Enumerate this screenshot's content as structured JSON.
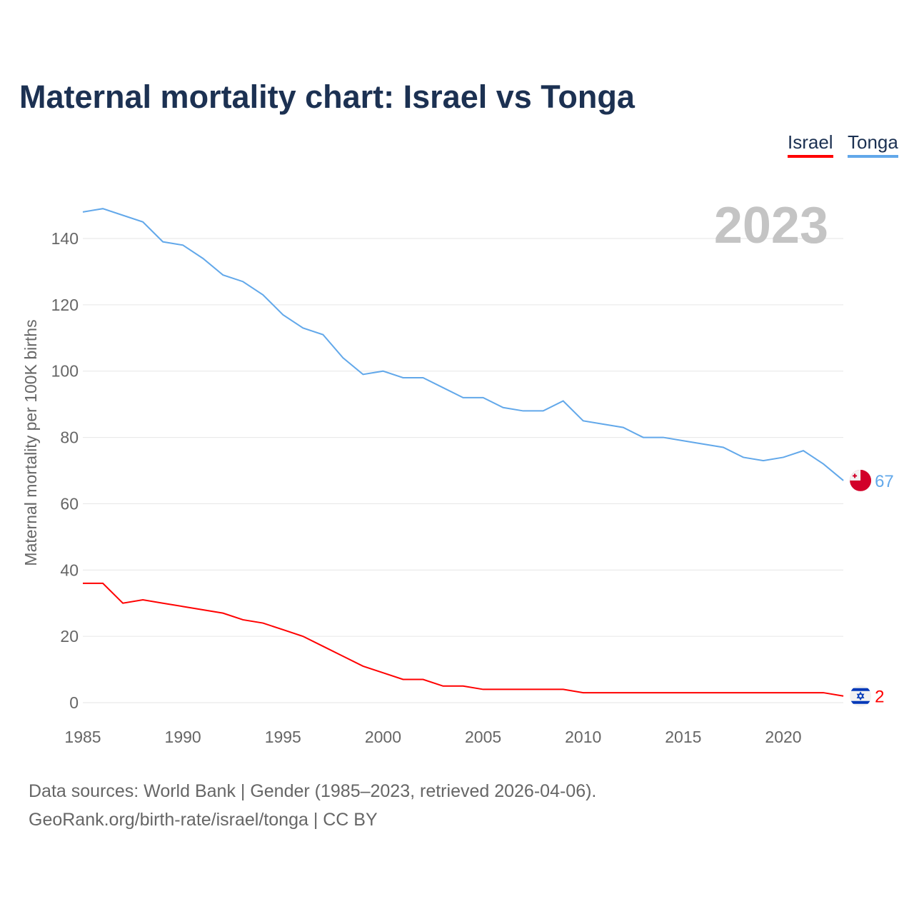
{
  "chart_data": {
    "type": "line",
    "title": "Maternal mortality chart: Israel vs Tonga",
    "xlabel": "",
    "ylabel": "Maternal mortality per 100K births",
    "year_label": "2023",
    "xlim": [
      1985,
      2023
    ],
    "ylim": [
      0,
      150
    ],
    "x_ticks": [
      1985,
      1990,
      1995,
      2000,
      2005,
      2010,
      2015,
      2020
    ],
    "y_ticks": [
      0,
      20,
      40,
      60,
      80,
      100,
      120,
      140
    ],
    "grid": true,
    "legend_placement": "top-right",
    "x": [
      1985,
      1986,
      1987,
      1988,
      1989,
      1990,
      1991,
      1992,
      1993,
      1994,
      1995,
      1996,
      1997,
      1998,
      1999,
      2000,
      2001,
      2002,
      2003,
      2004,
      2005,
      2006,
      2007,
      2008,
      2009,
      2010,
      2011,
      2012,
      2013,
      2014,
      2015,
      2016,
      2017,
      2018,
      2019,
      2020,
      2021,
      2022,
      2023
    ],
    "series": [
      {
        "name": "Israel",
        "color": "#ff0000",
        "end_label": "2",
        "flag": "israel-flag",
        "values": [
          36,
          36,
          30,
          31,
          30,
          29,
          28,
          27,
          25,
          24,
          22,
          20,
          17,
          14,
          11,
          9,
          7,
          7,
          5,
          5,
          4,
          4,
          4,
          4,
          4,
          3,
          3,
          3,
          3,
          3,
          3,
          3,
          3,
          3,
          3,
          3,
          3,
          3,
          2
        ]
      },
      {
        "name": "Tonga",
        "color": "#62a8ea",
        "end_label": "67",
        "flag": "tonga-flag",
        "values": [
          148,
          149,
          147,
          145,
          139,
          138,
          134,
          129,
          127,
          123,
          117,
          113,
          111,
          104,
          99,
          100,
          98,
          98,
          95,
          92,
          92,
          89,
          88,
          88,
          91,
          85,
          84,
          83,
          80,
          80,
          79,
          78,
          77,
          74,
          73,
          74,
          76,
          72,
          67
        ]
      }
    ]
  },
  "footer": {
    "line1": "Data sources: World Bank | Gender (1985–2023, retrieved 2026-04-06).",
    "line2": "GeoRank.org/birth-rate/israel/tonga | CC BY"
  }
}
